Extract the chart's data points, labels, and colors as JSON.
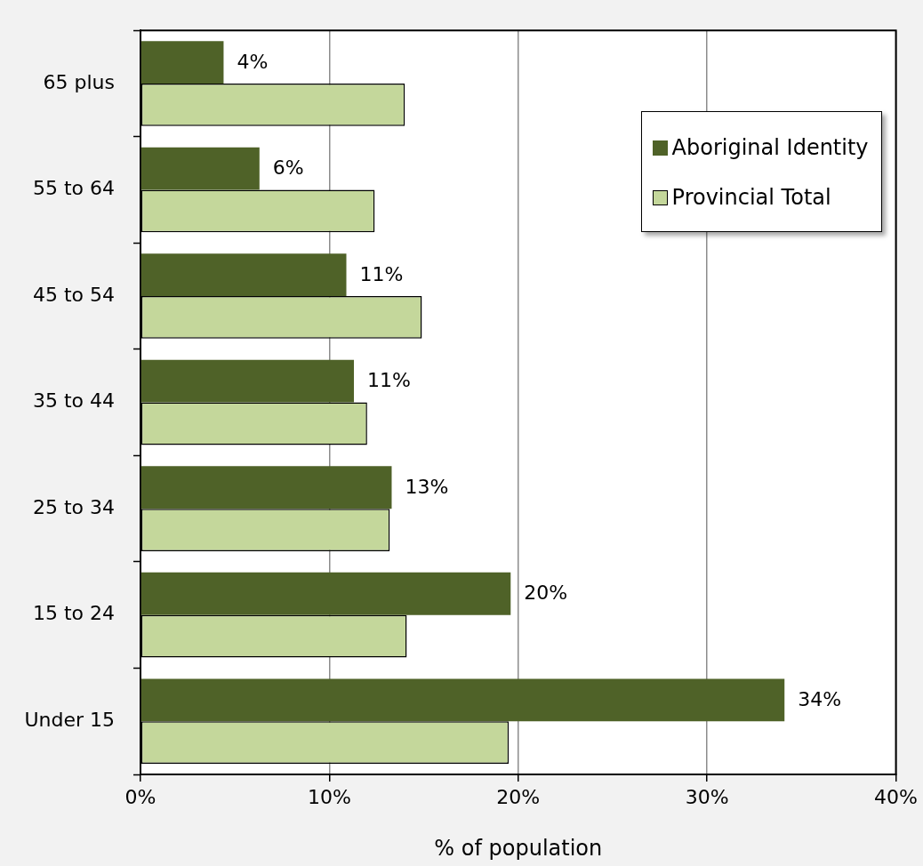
{
  "chart_data": {
    "type": "bar",
    "orientation": "horizontal",
    "categories": [
      "65 plus",
      "55 to 64",
      "45 to 54",
      "35 to 44",
      "25 to 34",
      "15 to 24",
      "Under 15"
    ],
    "series": [
      {
        "name": "Aboriginal Identity",
        "color": "#4f6228",
        "values": [
          4.4,
          6.3,
          10.9,
          11.3,
          13.3,
          19.6,
          34.1
        ],
        "value_labels": [
          "4%",
          "6%",
          "11%",
          "11%",
          "13%",
          "20%",
          "34%"
        ]
      },
      {
        "name": "Provincial Total",
        "color": "#c4d79b",
        "values": [
          14.0,
          12.4,
          14.9,
          12.0,
          13.2,
          14.1,
          19.5
        ]
      }
    ],
    "xlabel": "% of population",
    "xlim": [
      0,
      40
    ],
    "xticks": [
      {
        "value": 0,
        "label": "0%"
      },
      {
        "value": 10,
        "label": "10%"
      },
      {
        "value": 20,
        "label": "20%"
      },
      {
        "value": 30,
        "label": "30%"
      },
      {
        "value": 40,
        "label": "40%"
      }
    ],
    "grid": "x",
    "legend": "top right"
  }
}
